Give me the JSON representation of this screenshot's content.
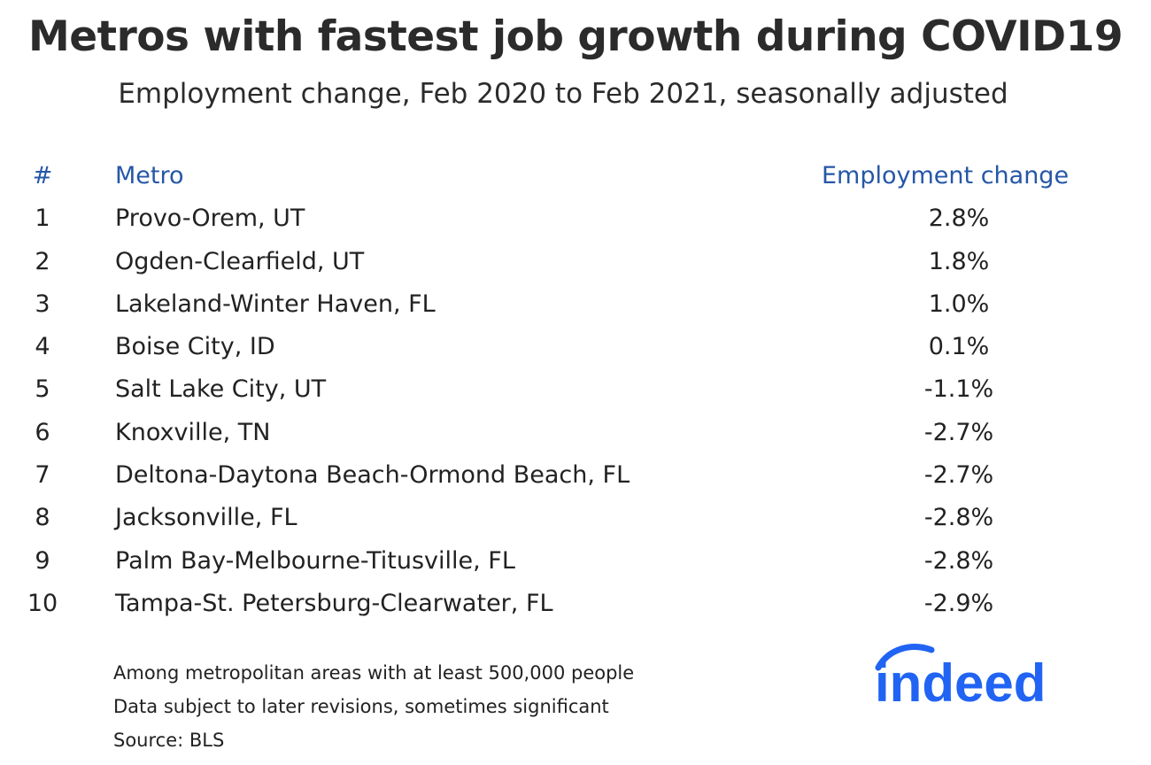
{
  "chart_data": {
    "type": "table",
    "title": "Metros with fastest job growth during COVID19",
    "subtitle": "Employment change, Feb 2020 to Feb 2021, seasonally adjusted",
    "columns": [
      "#",
      "Metro",
      "Employment change"
    ],
    "rows": [
      {
        "rank": "1",
        "metro": "Provo-Orem, UT",
        "change": "2.8%",
        "value": 2.8
      },
      {
        "rank": "2",
        "metro": "Ogden-Clearfield, UT",
        "change": "1.8%",
        "value": 1.8
      },
      {
        "rank": "3",
        "metro": "Lakeland-Winter Haven, FL",
        "change": "1.0%",
        "value": 1.0
      },
      {
        "rank": "4",
        "metro": "Boise City, ID",
        "change": "0.1%",
        "value": 0.1
      },
      {
        "rank": "5",
        "metro": "Salt Lake City, UT",
        "change": "-1.1%",
        "value": -1.1
      },
      {
        "rank": "6",
        "metro": "Knoxville, TN",
        "change": "-2.7%",
        "value": -2.7
      },
      {
        "rank": "7",
        "metro": "Deltona-Daytona Beach-Ormond Beach, FL",
        "change": "-2.7%",
        "value": -2.7
      },
      {
        "rank": "8",
        "metro": "Jacksonville, FL",
        "change": "-2.8%",
        "value": -2.8
      },
      {
        "rank": "9",
        "metro": "Palm Bay-Melbourne-Titusville, FL",
        "change": "-2.8%",
        "value": -2.8
      },
      {
        "rank": "10",
        "metro": "Tampa-St. Petersburg-Clearwater, FL",
        "change": "-2.9%",
        "value": -2.9
      }
    ],
    "notes": [
      "Among metropolitan areas with at least 500,000 people",
      "Data subject to later revisions, sometimes significant",
      "Source: BLS"
    ]
  },
  "logo": {
    "text": "indeed",
    "color": "#2164f3"
  },
  "colors": {
    "header": "#2557a7",
    "text": "#222222"
  }
}
